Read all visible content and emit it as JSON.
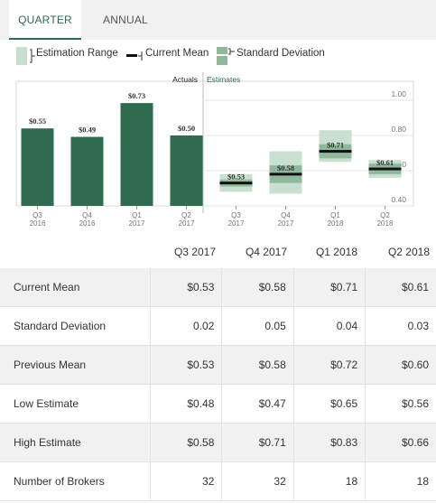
{
  "tabs": [
    {
      "label": "QUARTER",
      "active": true
    },
    {
      "label": "ANNUAL",
      "active": false
    }
  ],
  "legend": {
    "range_label": "Estimation Range",
    "mean_label": "Current Mean",
    "std_label": "Standard Deviation"
  },
  "colors": {
    "actual_bar": "#2e6b4f",
    "estimate_range": "#c9dfcf",
    "std_dev": "#8fb89d",
    "mean_line": "#111111",
    "accent": "#2d6a4f"
  },
  "chart_data": {
    "type": "bar",
    "section_labels": {
      "actuals": "Actuals",
      "estimates": "Estimates"
    },
    "actuals": [
      {
        "quarter": "Q3",
        "year": "2016",
        "value": 0.55,
        "label": "$0.55"
      },
      {
        "quarter": "Q4",
        "year": "2016",
        "value": 0.49,
        "label": "$0.49"
      },
      {
        "quarter": "Q1",
        "year": "2017",
        "value": 0.73,
        "label": "$0.73"
      },
      {
        "quarter": "Q2",
        "year": "2017",
        "value": 0.5,
        "label": "$0.50"
      }
    ],
    "estimates": [
      {
        "quarter": "Q3",
        "year": "2017",
        "mean": 0.53,
        "label": "$0.53",
        "std": 0.02,
        "low": 0.48,
        "high": 0.58
      },
      {
        "quarter": "Q4",
        "year": "2017",
        "mean": 0.58,
        "label": "$0.58",
        "std": 0.05,
        "low": 0.47,
        "high": 0.71
      },
      {
        "quarter": "Q1",
        "year": "2018",
        "mean": 0.71,
        "label": "$0.71",
        "std": 0.04,
        "low": 0.65,
        "high": 0.83
      },
      {
        "quarter": "Q2",
        "year": "2018",
        "mean": 0.61,
        "label": "$0.61",
        "std": 0.03,
        "low": 0.56,
        "high": 0.66
      }
    ],
    "y_ticks": [
      "1.00",
      "0.80",
      "0.60",
      "0.40"
    ],
    "ylim": [
      0.4,
      1.0
    ]
  },
  "table": {
    "columns": [
      "Q3 2017",
      "Q4 2017",
      "Q1 2018",
      "Q2 2018"
    ],
    "rows": [
      {
        "label": "Current Mean",
        "values": [
          "$0.53",
          "$0.58",
          "$0.71",
          "$0.61"
        ]
      },
      {
        "label": "Standard Deviation",
        "values": [
          "0.02",
          "0.05",
          "0.04",
          "0.03"
        ]
      },
      {
        "label": "Previous Mean",
        "values": [
          "$0.53",
          "$0.58",
          "$0.72",
          "$0.60"
        ]
      },
      {
        "label": "Low Estimate",
        "values": [
          "$0.48",
          "$0.47",
          "$0.65",
          "$0.56"
        ]
      },
      {
        "label": "High Estimate",
        "values": [
          "$0.58",
          "$0.71",
          "$0.83",
          "$0.66"
        ]
      },
      {
        "label": "Number of Brokers",
        "values": [
          "32",
          "32",
          "18",
          "18"
        ]
      }
    ]
  }
}
